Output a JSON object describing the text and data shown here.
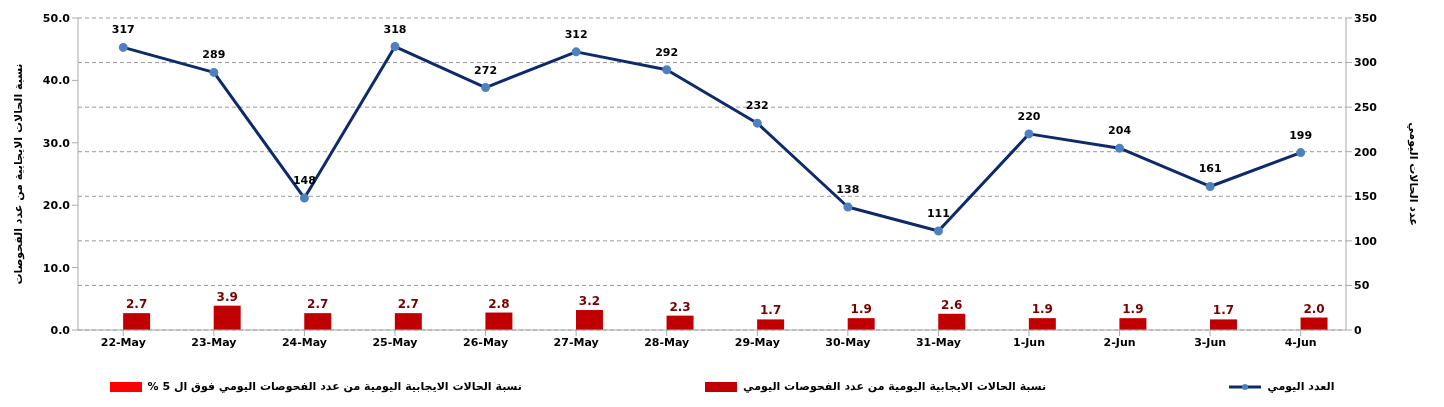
{
  "chart_data": {
    "type": "bar",
    "categories": [
      "22-May",
      "23-May",
      "24-May",
      "25-May",
      "26-May",
      "27-May",
      "28-May",
      "29-May",
      "30-May",
      "31-May",
      "1-Jun",
      "2-Jun",
      "3-Jun",
      "4-Jun"
    ],
    "series": [
      {
        "name": "نسبة الحالات الايجابية اليومية من عدد الفحوصات اليومي فوق ال 5 %",
        "color": "#ff0000",
        "values": [
          null,
          null,
          null,
          null,
          null,
          null,
          null,
          null,
          null,
          null,
          null,
          null,
          null,
          null
        ]
      },
      {
        "name": "نسبة الحالات الايجابية اليومية من عدد الفحوصات اليومي",
        "color": "#c00000",
        "values": [
          2.7,
          3.9,
          2.7,
          2.7,
          2.8,
          3.2,
          2.3,
          1.7,
          1.9,
          2.6,
          1.9,
          1.9,
          1.7,
          2.0
        ],
        "value_labels": [
          "2.7",
          "3.9",
          "2.7",
          "2.7",
          "2.8",
          "3.2",
          "2.3",
          "1.7",
          "1.9",
          "2.6",
          "1.9",
          "1.9",
          "1.7",
          "2.0"
        ]
      },
      {
        "name": "العدد اليومي",
        "type": "line",
        "axis": "y2",
        "color": "#0d2b6b",
        "values": [
          317,
          289,
          148,
          318,
          272,
          312,
          292,
          232,
          138,
          111,
          220,
          204,
          161,
          199
        ],
        "value_labels": [
          "317",
          "289",
          "148",
          "318",
          "272",
          "312",
          "292",
          "232",
          "138",
          "111",
          "220",
          "204",
          "161",
          "199"
        ]
      }
    ],
    "ylabel": "نسبة الحالات الايجابية من عدد الفحوصات",
    "y2label": "عدد الحالات اليومي",
    "ylim": [
      0,
      50
    ],
    "yticks": [
      {
        "value": 0,
        "label": "0.0"
      },
      {
        "value": 10,
        "label": "10.0"
      },
      {
        "value": 20,
        "label": "20.0"
      },
      {
        "value": 30,
        "label": "30.0"
      },
      {
        "value": 40,
        "label": "40.0"
      },
      {
        "value": 50,
        "label": "50.0"
      }
    ],
    "y2lim": [
      0,
      350
    ],
    "y2ticks": [
      0,
      50,
      100,
      150,
      200,
      250,
      300,
      350
    ],
    "grid": "y2",
    "legend": "bottom",
    "marker": "circle",
    "line_style": "solid"
  }
}
